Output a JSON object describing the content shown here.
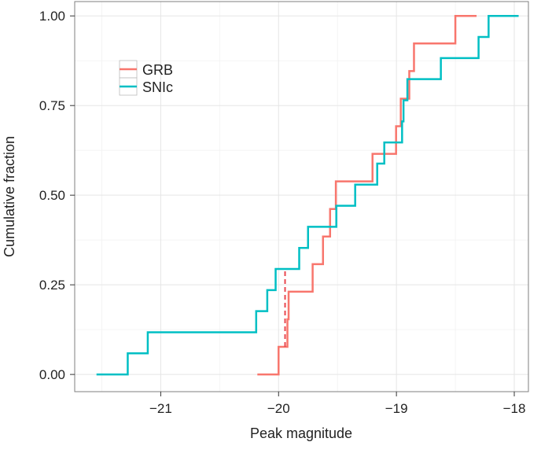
{
  "chart_data": {
    "type": "line",
    "step": true,
    "title": "",
    "xlabel": "Peak magnitude",
    "ylabel": "Cumulative fraction",
    "xlim": [
      -21.73,
      -17.88
    ],
    "ylim": [
      -0.048,
      1.04
    ],
    "xticks": [
      -21,
      -20,
      -19,
      -18
    ],
    "xtick_labels": [
      "−21",
      "−20",
      "−19",
      "−18"
    ],
    "yticks": [
      0,
      0.25,
      0.5,
      0.75,
      1.0
    ],
    "ytick_labels": [
      "0.00",
      "0.25",
      "0.50",
      "0.75",
      "1.00"
    ],
    "grid": true,
    "legend_position": "top-left",
    "series": [
      {
        "name": "GRB",
        "color": "#F8766D",
        "start": -20.18,
        "end": -18.32,
        "x": [
          -20.0,
          -19.925,
          -19.915,
          -19.711,
          -19.623,
          -19.563,
          -19.514,
          -19.203,
          -19.003,
          -18.963,
          -18.891,
          -18.851,
          -18.5
        ]
      },
      {
        "name": "SNIc",
        "color": "#00BFC4",
        "start": -21.545,
        "end": -17.963,
        "x": [
          -21.28,
          -21.11,
          -20.19,
          -20.096,
          -20.025,
          -19.825,
          -19.75,
          -19.51,
          -19.35,
          -19.163,
          -19.103,
          -18.952,
          -18.94,
          -18.907,
          -18.623,
          -18.303,
          -18.218
        ]
      }
    ],
    "annotation": {
      "type": "dashed-segment",
      "color": "#E8474F",
      "x": -19.945,
      "y_from": 0.077,
      "y_to": 0.294
    }
  }
}
